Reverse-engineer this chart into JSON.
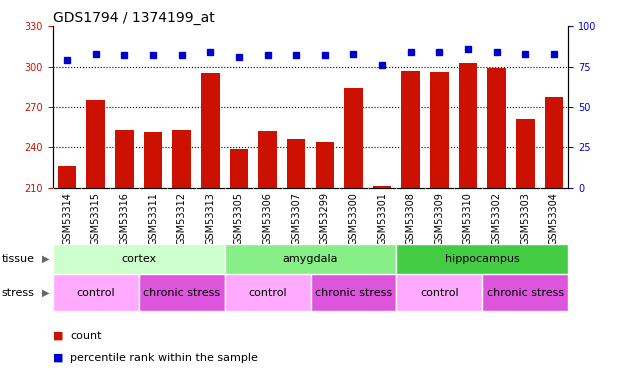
{
  "title": "GDS1794 / 1374199_at",
  "categories": [
    "GSM53314",
    "GSM53315",
    "GSM53316",
    "GSM53311",
    "GSM53312",
    "GSM53313",
    "GSM53305",
    "GSM53306",
    "GSM53307",
    "GSM53299",
    "GSM53300",
    "GSM53301",
    "GSM53308",
    "GSM53309",
    "GSM53310",
    "GSM53302",
    "GSM53303",
    "GSM53304"
  ],
  "bar_values": [
    226,
    275,
    253,
    251,
    253,
    295,
    239,
    252,
    246,
    244,
    284,
    211,
    297,
    296,
    303,
    299,
    261,
    277
  ],
  "percentile_values": [
    79,
    83,
    82,
    82,
    82,
    84,
    81,
    82,
    82,
    82,
    83,
    76,
    84,
    84,
    86,
    84,
    83,
    83
  ],
  "bar_color": "#cc1100",
  "dot_color": "#0000cc",
  "ylim_left": [
    210,
    330
  ],
  "ylim_right": [
    0,
    100
  ],
  "yticks_left": [
    210,
    240,
    270,
    300,
    330
  ],
  "yticks_right": [
    0,
    25,
    50,
    75,
    100
  ],
  "grid_values": [
    240,
    270,
    300
  ],
  "tissue_groups": [
    {
      "label": "cortex",
      "start": 0,
      "end": 5,
      "color": "#ccffcc"
    },
    {
      "label": "amygdala",
      "start": 6,
      "end": 11,
      "color": "#88ee88"
    },
    {
      "label": "hippocampus",
      "start": 12,
      "end": 17,
      "color": "#44cc44"
    }
  ],
  "stress_groups": [
    {
      "label": "control",
      "start": 0,
      "end": 2,
      "color": "#ffaaff"
    },
    {
      "label": "chronic stress",
      "start": 3,
      "end": 5,
      "color": "#dd55dd"
    },
    {
      "label": "control",
      "start": 6,
      "end": 8,
      "color": "#ffaaff"
    },
    {
      "label": "chronic stress",
      "start": 9,
      "end": 11,
      "color": "#dd55dd"
    },
    {
      "label": "control",
      "start": 12,
      "end": 14,
      "color": "#ffaaff"
    },
    {
      "label": "chronic stress",
      "start": 15,
      "end": 17,
      "color": "#dd55dd"
    }
  ],
  "xtick_bg_color": "#cccccc",
  "plot_bg_color": "#ffffff",
  "title_fontsize": 10,
  "tick_fontsize": 7,
  "label_fontsize": 8,
  "bar_width": 0.65
}
